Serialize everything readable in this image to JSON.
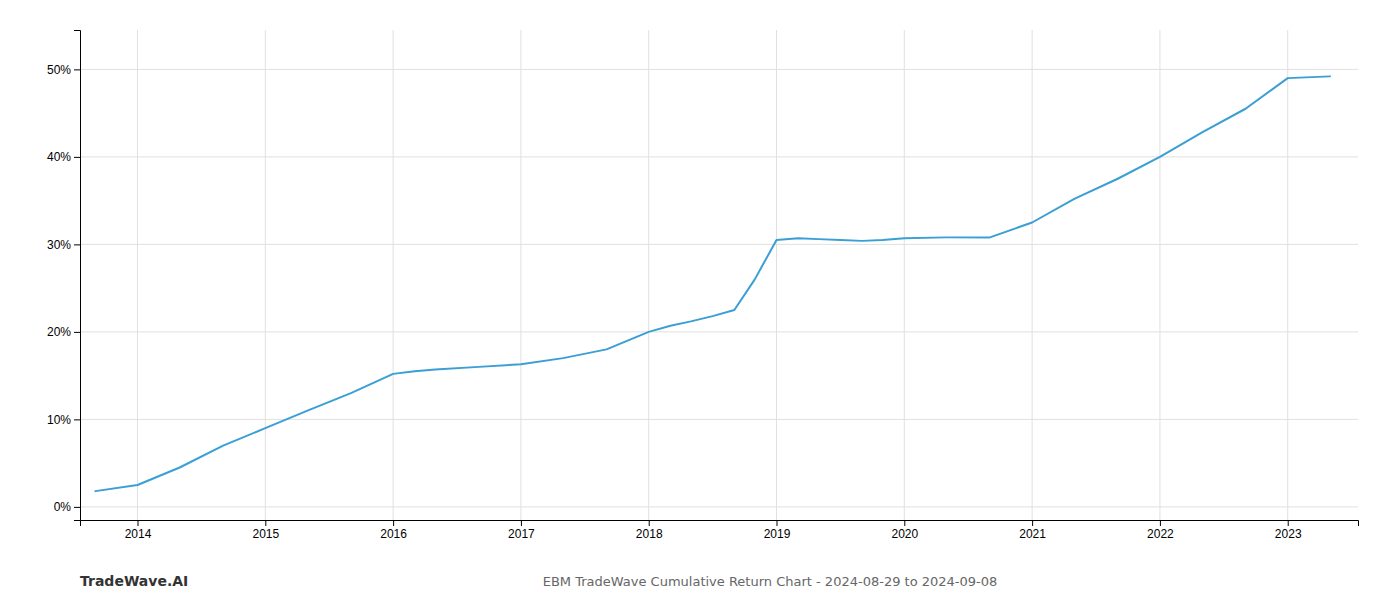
{
  "chart_data": {
    "type": "line",
    "title": "EBM TradeWave Cumulative Return Chart - 2024-08-29 to 2024-09-08",
    "annotations": [
      "TradeWave.AI"
    ],
    "x": [
      2013.67,
      2014.0,
      2014.33,
      2014.67,
      2015.0,
      2015.33,
      2015.67,
      2016.0,
      2016.17,
      2016.33,
      2016.67,
      2017.0,
      2017.33,
      2017.67,
      2018.0,
      2018.17,
      2018.33,
      2018.5,
      2018.67,
      2018.83,
      2019.0,
      2019.17,
      2019.33,
      2019.5,
      2019.67,
      2019.83,
      2020.0,
      2020.33,
      2020.67,
      2021.0,
      2021.33,
      2021.67,
      2022.0,
      2022.33,
      2022.67,
      2023.0,
      2023.33
    ],
    "values": [
      0.018,
      0.025,
      0.045,
      0.07,
      0.09,
      0.11,
      0.13,
      0.152,
      0.155,
      0.157,
      0.16,
      0.163,
      0.17,
      0.18,
      0.2,
      0.207,
      0.212,
      0.218,
      0.225,
      0.26,
      0.305,
      0.307,
      0.306,
      0.305,
      0.304,
      0.305,
      0.307,
      0.308,
      0.308,
      0.325,
      0.352,
      0.375,
      0.4,
      0.428,
      0.455,
      0.49,
      0.492
    ],
    "color": "#3a9fd4",
    "xlim": [
      2013.55,
      2023.55
    ],
    "xticks": [
      2014,
      2015,
      2016,
      2017,
      2018,
      2019,
      2020,
      2021,
      2022,
      2023
    ],
    "ylim": [
      -0.015,
      0.545
    ],
    "yticks": [
      {
        "value": 0.0,
        "label": "0%"
      },
      {
        "value": 0.1,
        "label": "10%"
      },
      {
        "value": 0.2,
        "label": "20%"
      },
      {
        "value": 0.3,
        "label": "30%"
      },
      {
        "value": 0.4,
        "label": "40%"
      },
      {
        "value": 0.5,
        "label": "50%"
      }
    ],
    "grid": true
  }
}
